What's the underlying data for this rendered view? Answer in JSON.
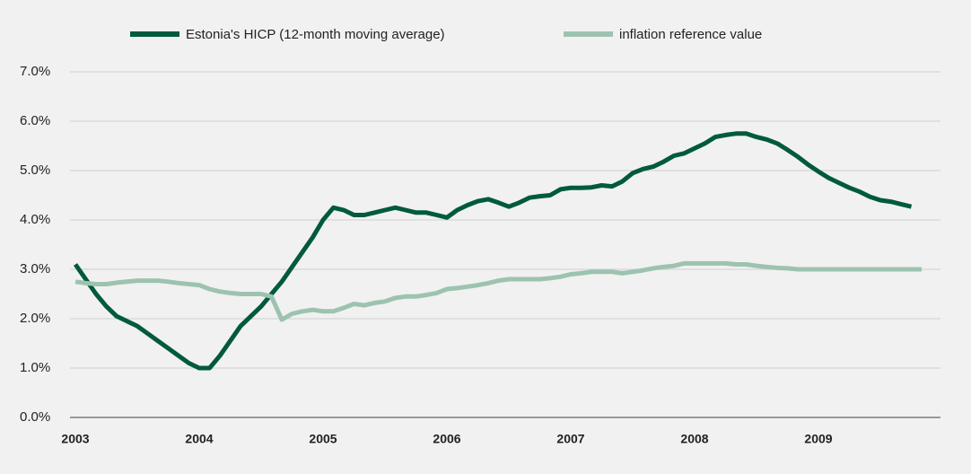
{
  "chart_data": {
    "type": "line",
    "categories": [
      "2003",
      null,
      null,
      null,
      null,
      null,
      null,
      null,
      null,
      null,
      null,
      null,
      "2004",
      null,
      null,
      null,
      null,
      null,
      null,
      null,
      null,
      null,
      null,
      null,
      "2005",
      null,
      null,
      null,
      null,
      null,
      null,
      null,
      null,
      null,
      null,
      null,
      "2006",
      null,
      null,
      null,
      null,
      null,
      null,
      null,
      null,
      null,
      null,
      null,
      "2007",
      null,
      null,
      null,
      null,
      null,
      null,
      null,
      null,
      null,
      null,
      null,
      "2008",
      null,
      null,
      null,
      null,
      null,
      null,
      null,
      null,
      null,
      null,
      null,
      "2009",
      null,
      null,
      null,
      null,
      null,
      null,
      null,
      null,
      null,
      null
    ],
    "series": [
      {
        "name": "Estonia's HICP (12-month moving average)",
        "color": "#005a3c",
        "values": [
          3.1,
          2.8,
          2.5,
          2.25,
          2.05,
          1.95,
          1.85,
          1.7,
          1.55,
          1.4,
          1.25,
          1.1,
          1.0,
          1.0,
          1.25,
          1.55,
          1.85,
          2.05,
          2.25,
          2.5,
          2.75,
          3.05,
          3.35,
          3.65,
          4.0,
          4.25,
          4.2,
          4.1,
          4.1,
          4.15,
          4.2,
          4.25,
          4.2,
          4.15,
          4.15,
          4.1,
          4.05,
          4.2,
          4.3,
          4.38,
          4.42,
          4.35,
          4.27,
          4.35,
          4.45,
          4.48,
          4.5,
          4.62,
          4.65,
          4.65,
          4.66,
          4.7,
          4.68,
          4.78,
          4.95,
          5.03,
          5.08,
          5.18,
          5.3,
          5.35,
          5.45,
          5.55,
          5.68,
          5.72,
          5.75,
          5.75,
          5.68,
          5.63,
          5.55,
          5.42,
          5.28,
          5.12,
          4.98,
          4.85,
          4.75,
          4.65,
          4.57,
          4.47,
          4.4,
          4.37,
          4.32,
          4.27,
          null
        ]
      },
      {
        "name": "inflation reference value",
        "color": "#9dc3b0",
        "values": [
          2.75,
          2.72,
          2.7,
          2.7,
          2.73,
          2.75,
          2.77,
          2.77,
          2.77,
          2.75,
          2.72,
          2.7,
          2.68,
          2.6,
          2.55,
          2.52,
          2.5,
          2.5,
          2.5,
          2.45,
          1.98,
          2.1,
          2.15,
          2.18,
          2.15,
          2.15,
          2.22,
          2.3,
          2.27,
          2.32,
          2.35,
          2.42,
          2.45,
          2.45,
          2.48,
          2.52,
          2.6,
          2.62,
          2.65,
          2.68,
          2.72,
          2.77,
          2.8,
          2.8,
          2.8,
          2.8,
          2.82,
          2.85,
          2.9,
          2.92,
          2.95,
          2.95,
          2.95,
          2.92,
          2.95,
          2.98,
          3.02,
          3.05,
          3.07,
          3.12,
          3.12,
          3.12,
          3.12,
          3.12,
          3.1,
          3.1,
          3.07,
          3.05,
          3.03,
          3.02,
          3.0,
          3.0,
          3.0,
          3.0,
          3.0,
          3.0,
          3.0,
          3.0,
          3.0,
          3.0,
          3.0,
          3.0,
          3.0
        ]
      }
    ],
    "ylim": [
      0,
      7
    ],
    "yticks": [
      {
        "value": 0,
        "label": "0.0%"
      },
      {
        "value": 1,
        "label": "1.0%"
      },
      {
        "value": 2,
        "label": "2.0%"
      },
      {
        "value": 3,
        "label": "3.0%"
      },
      {
        "value": 4,
        "label": "4.0%"
      },
      {
        "value": 5,
        "label": "5.0%"
      },
      {
        "value": 6,
        "label": "6.0%"
      },
      {
        "value": 7,
        "label": "7.0%"
      }
    ],
    "grid": true
  }
}
